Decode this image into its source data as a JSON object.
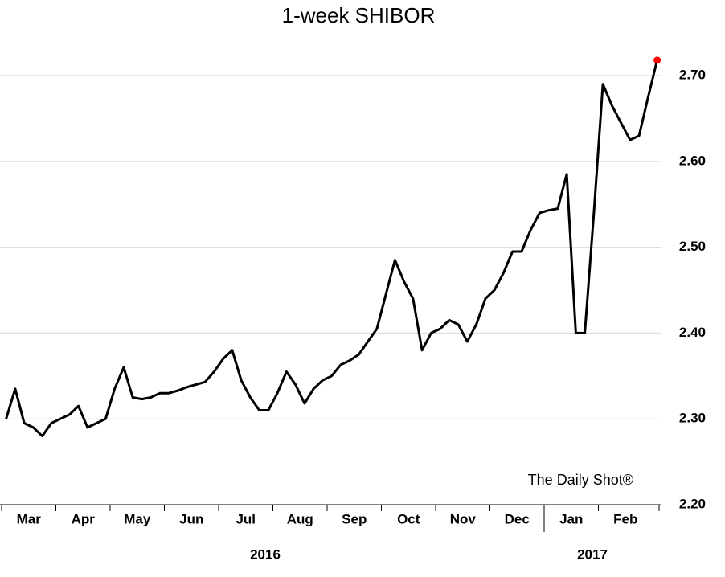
{
  "chart_data": {
    "type": "line",
    "title": "1-week SHIBOR",
    "categories": [
      null,
      null,
      null,
      "Mar",
      null,
      null,
      null,
      null,
      null,
      "Apr",
      null,
      null,
      null,
      null,
      null,
      "May",
      null,
      null,
      null,
      null,
      null,
      "Jun",
      null,
      null,
      null,
      null,
      null,
      "Jul",
      null,
      null,
      null,
      null,
      null,
      "Aug",
      null,
      null,
      null,
      null,
      null,
      "Sep",
      null,
      null,
      null,
      null,
      null,
      "Oct",
      null,
      null,
      null,
      null,
      null,
      "Nov",
      null,
      null,
      null,
      null,
      null,
      "Dec",
      null,
      null,
      null,
      null,
      null,
      "Jan",
      null,
      null,
      null,
      null,
      null,
      "Feb",
      null,
      null,
      null
    ],
    "series": [
      {
        "name": "1-week SHIBOR",
        "color": "#000000",
        "values": [
          2.3,
          2.335,
          2.295,
          2.29,
          2.28,
          2.295,
          2.3,
          2.305,
          2.315,
          2.29,
          2.295,
          2.3,
          2.335,
          2.36,
          2.325,
          2.323,
          2.325,
          2.33,
          2.33,
          2.333,
          2.337,
          2.34,
          2.343,
          2.355,
          2.37,
          2.38,
          2.345,
          2.325,
          2.31,
          2.31,
          2.33,
          2.355,
          2.34,
          2.318,
          2.335,
          2.345,
          2.35,
          2.363,
          2.368,
          2.375,
          2.39,
          2.405,
          2.445,
          2.485,
          2.46,
          2.44,
          2.38,
          2.4,
          2.405,
          2.415,
          2.41,
          2.39,
          2.41,
          2.44,
          2.45,
          2.47,
          2.495,
          2.495,
          2.52,
          2.54,
          2.543,
          2.545,
          2.585,
          2.4,
          2.4,
          2.54,
          2.69,
          2.665,
          2.645,
          2.625,
          2.63,
          2.675,
          2.718
        ]
      }
    ],
    "highlight_color": "#ff0000",
    "ylim": [
      2.2,
      2.73
    ],
    "yticks": [
      {
        "value": 2.2,
        "label": "2.20"
      },
      {
        "value": 2.3,
        "label": "2.30"
      },
      {
        "value": 2.4,
        "label": "2.40"
      },
      {
        "value": 2.5,
        "label": "2.50"
      },
      {
        "value": 2.6,
        "label": "2.60"
      },
      {
        "value": 2.7,
        "label": "2.70"
      }
    ],
    "grid": true,
    "year_labels": [
      "2016",
      "2017"
    ],
    "watermark": "The Daily Shot®"
  }
}
